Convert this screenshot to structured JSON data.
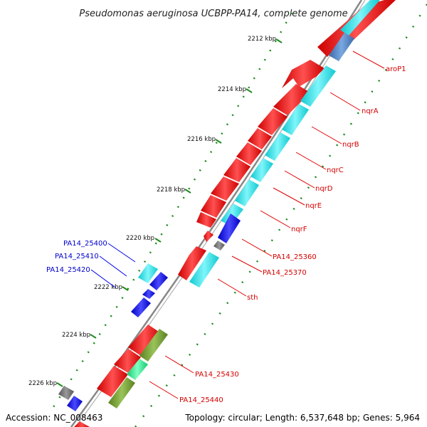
{
  "title": "Pseudomonas aeruginosa UCBPP-PA14, complete genome",
  "footer": {
    "accession": "Accession: NC_008463",
    "topology": "Topology: circular; Length: 6,537,648 bp; Genes: 5,964"
  },
  "colors": {
    "forward_gene": "#ff1a1a",
    "reverse_gene": "#ff1a1a",
    "cyan_gene": "#22e6ee",
    "blue_gene": "#1010ee",
    "steel_gene": "#4a7fc0",
    "olive_gene": "#6e9a2c",
    "green_gene": "#22ee88",
    "gray_gene": "#6e6e6e",
    "backbone": "#7a7a7a",
    "tick": "#1f8a1f",
    "label_red": "#d40000",
    "label_blue": "#0000cc"
  },
  "kbp_labels": [
    "2212 kbp",
    "2214 kbp",
    "2216 kbp",
    "2218 kbp",
    "2220 kbp",
    "2222 kbp",
    "2224 kbp",
    "2226 kbp"
  ],
  "gene_labels_right": [
    "aroP1",
    "nqrA",
    "nqrB",
    "nqrC",
    "nqrD",
    "nqrE",
    "nqrF",
    "PA14_25360",
    "PA14_25370",
    "sth",
    "PA14_25430",
    "PA14_25440"
  ],
  "gene_labels_left": [
    "PA14_25400",
    "PA14_25410",
    "PA14_25420"
  ]
}
